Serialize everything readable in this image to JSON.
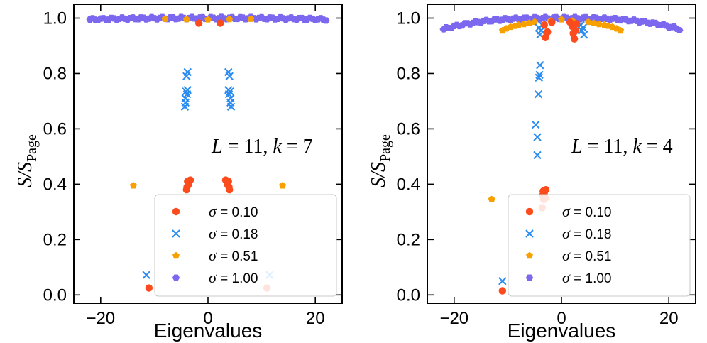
{
  "chart_data": [
    {
      "type": "scatter",
      "panel": "left",
      "title": "",
      "xlabel": "Eigenvalues",
      "ylabel": "S/S_Page",
      "ylabel_main": "S/S",
      "ylabel_sub": "Page",
      "xlim": [
        -25,
        25
      ],
      "ylim": [
        -0.03,
        1.05
      ],
      "xticks": [
        -20,
        0,
        20
      ],
      "xtick_labels": [
        "−20",
        "0",
        "20"
      ],
      "yticks": [
        0.0,
        0.2,
        0.4,
        0.6,
        0.8,
        1.0
      ],
      "ytick_labels": [
        "0.0",
        "0.2",
        "0.4",
        "0.6",
        "0.8",
        "1.0"
      ],
      "reference_line": 1.0,
      "annotation": "L = 11, k = 7",
      "annotation_parts": [
        "L",
        " = 11, ",
        "k",
        " = 7"
      ],
      "legend_position": "bottom-right",
      "series": [
        {
          "name": "σ = 0.10",
          "label_symbol": "σ",
          "label_value": "= 0.10",
          "marker": "circle",
          "color": "#fc4b1c",
          "points": [
            [
              -11,
              0.025
            ],
            [
              -4,
              0.38
            ],
            [
              -3.9,
              0.39
            ],
            [
              -3.6,
              0.4
            ],
            [
              -3.8,
              0.41
            ],
            [
              -3.3,
              0.415
            ],
            [
              3.3,
              0.415
            ],
            [
              3.8,
              0.41
            ],
            [
              3.6,
              0.4
            ],
            [
              3.9,
              0.39
            ],
            [
              4,
              0.38
            ],
            [
              11,
              0.025
            ],
            [
              -1.7,
              0.982
            ],
            [
              2.3,
              0.982
            ]
          ]
        },
        {
          "name": "σ = 0.18",
          "label_symbol": "σ",
          "label_value": "= 0.18",
          "marker": "x",
          "color": "#2a8cf0",
          "points": [
            [
              -11.5,
              0.072
            ],
            [
              -4.3,
              0.68
            ],
            [
              -4.2,
              0.695
            ],
            [
              -4.2,
              0.71
            ],
            [
              -3.9,
              0.725
            ],
            [
              -4.1,
              0.735
            ],
            [
              -3.8,
              0.74
            ],
            [
              -4.0,
              0.79
            ],
            [
              -3.8,
              0.805
            ],
            [
              4.3,
              0.68
            ],
            [
              4.2,
              0.695
            ],
            [
              4.2,
              0.71
            ],
            [
              3.9,
              0.725
            ],
            [
              4.1,
              0.735
            ],
            [
              3.8,
              0.74
            ],
            [
              4.0,
              0.79
            ],
            [
              3.8,
              0.805
            ],
            [
              11.5,
              0.072
            ]
          ]
        },
        {
          "name": "σ = 0.51",
          "label_symbol": "σ",
          "label_value": "= 0.51",
          "marker": "pentagon",
          "color": "#f7a000",
          "points": [
            [
              -13.9,
              0.395
            ],
            [
              13.9,
              0.395
            ],
            [
              -8,
              0.997
            ],
            [
              -4,
              0.996
            ],
            [
              0,
              0.995
            ],
            [
              4,
              0.996
            ],
            [
              8,
              0.997
            ]
          ]
        },
        {
          "name": "σ = 1.00",
          "label_symbol": "σ",
          "label_value": "= 1.00",
          "marker": "hexagon",
          "color": "#7b68ee",
          "band": {
            "x_start": -22,
            "x_end": 22,
            "count": 89,
            "y_center": 1.0,
            "y_edge": 0.995,
            "y_jitter": 0.004
          }
        }
      ]
    },
    {
      "type": "scatter",
      "panel": "right",
      "title": "",
      "xlabel": "Eigenvalues",
      "ylabel": "S/S_Page",
      "ylabel_main": "S/S",
      "ylabel_sub": "Page",
      "xlim": [
        -25,
        25
      ],
      "ylim": [
        -0.03,
        1.05
      ],
      "xticks": [
        -20,
        0,
        20
      ],
      "xtick_labels": [
        "−20",
        "0",
        "20"
      ],
      "yticks": [
        0.0,
        0.2,
        0.4,
        0.6,
        0.8,
        1.0
      ],
      "ytick_labels": [
        "0.0",
        "0.2",
        "0.4",
        "0.6",
        "0.8",
        "1.0"
      ],
      "reference_line": 1.0,
      "annotation": "L = 11, k = 4",
      "annotation_parts": [
        "L",
        " = 11, ",
        "k",
        " = 4"
      ],
      "legend_position": "bottom-right",
      "series": [
        {
          "name": "σ = 0.10",
          "label_symbol": "σ",
          "label_value": "= 0.10",
          "marker": "circle",
          "color": "#fc4b1c",
          "points": [
            [
              -11,
              0.015
            ],
            [
              -3.6,
              0.315
            ],
            [
              -3.3,
              0.345
            ],
            [
              -3.0,
              0.35
            ],
            [
              -3.5,
              0.36
            ],
            [
              -3.2,
              0.37
            ],
            [
              -3.4,
              0.375
            ],
            [
              -2.9,
              0.38
            ],
            [
              -3.0,
              0.93
            ],
            [
              -2.6,
              0.95
            ],
            [
              -3.2,
              0.975
            ],
            [
              2.4,
              0.925
            ],
            [
              2.2,
              0.945
            ],
            [
              2.6,
              0.955
            ],
            [
              2.0,
              0.97
            ],
            [
              2.8,
              0.98
            ],
            [
              -1.8,
              0.985
            ],
            [
              1.6,
              0.985
            ]
          ]
        },
        {
          "name": "σ = 0.18",
          "label_symbol": "σ",
          "label_value": "= 0.18",
          "marker": "x",
          "color": "#2a8cf0",
          "points": [
            [
              -11,
              0.05
            ],
            [
              -4.5,
              0.505
            ],
            [
              -4.5,
              0.57
            ],
            [
              -4.8,
              0.615
            ],
            [
              -4.3,
              0.725
            ],
            [
              -4.2,
              0.785
            ],
            [
              -4.1,
              0.795
            ],
            [
              -4.0,
              0.83
            ],
            [
              -4.0,
              0.94
            ],
            [
              -3.8,
              0.955
            ],
            [
              -4.2,
              0.965
            ],
            [
              -3.6,
              0.975
            ],
            [
              3.8,
              0.955
            ],
            [
              4.2,
              0.94
            ],
            [
              3.6,
              0.975
            ],
            [
              4.0,
              0.965
            ]
          ]
        },
        {
          "name": "σ = 0.51",
          "label_symbol": "σ",
          "label_value": "= 0.51",
          "marker": "pentagon",
          "color": "#f7a000",
          "points": [
            [
              -13,
              0.345
            ],
            [
              -11,
              0.955
            ],
            [
              -10.3,
              0.962
            ],
            [
              -9.5,
              0.968
            ],
            [
              -8.7,
              0.972
            ],
            [
              -8,
              0.975
            ],
            [
              -7,
              0.978
            ],
            [
              -6,
              0.982
            ],
            [
              -5,
              0.986
            ],
            [
              5,
              0.986
            ],
            [
              6,
              0.982
            ],
            [
              7,
              0.978
            ],
            [
              8,
              0.975
            ],
            [
              8.7,
              0.972
            ],
            [
              9.5,
              0.968
            ],
            [
              10.3,
              0.962
            ],
            [
              11,
              0.955
            ],
            [
              -2,
              0.99
            ],
            [
              0,
              0.995
            ],
            [
              2,
              0.99
            ]
          ]
        },
        {
          "name": "σ = 1.00",
          "label_symbol": "σ",
          "label_value": "= 1.00",
          "marker": "hexagon",
          "color": "#7b68ee",
          "band": {
            "x_start": -22,
            "x_end": 22,
            "count": 89,
            "y_center": 1.0,
            "y_edge": 0.96,
            "y_jitter": 0.004
          }
        }
      ]
    }
  ]
}
